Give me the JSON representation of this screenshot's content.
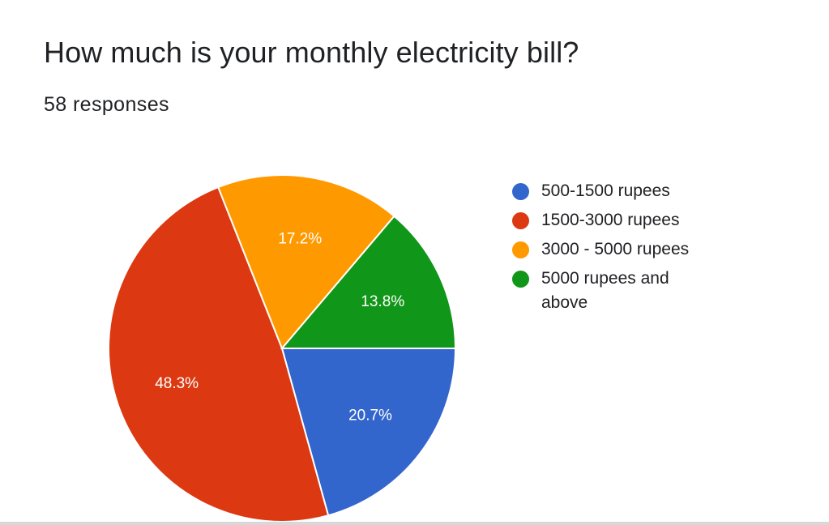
{
  "question": {
    "title": "How much is your monthly electricity bill?",
    "responses": "58 responses"
  },
  "chart_data": {
    "type": "pie",
    "categories": [
      "500-1500 rupees",
      "1500-3000 rupees",
      "3000 - 5000 rupees",
      "5000 rupees and above"
    ],
    "values": [
      20.7,
      48.3,
      17.2,
      13.8
    ],
    "value_labels": [
      "20.7%",
      "48.3%",
      "17.2%",
      "13.8%"
    ],
    "colors": [
      "#3366cc",
      "#dc3912",
      "#ff9900",
      "#109618"
    ],
    "legend_position": "right",
    "start_angle": "3 o'clock",
    "direction": "clockwise"
  }
}
